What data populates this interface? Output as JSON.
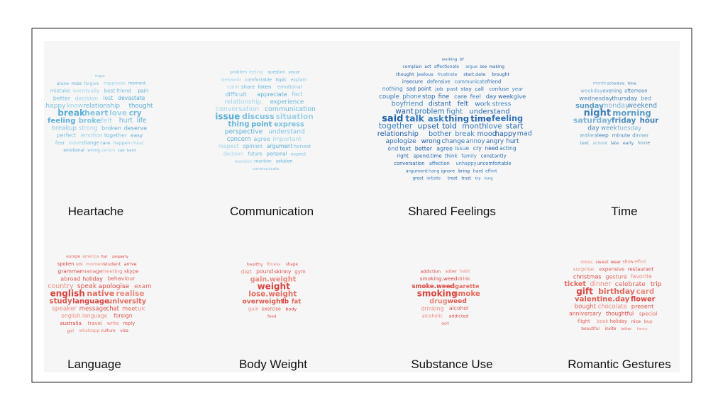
{
  "clouds": [
    {
      "label": "Heartache",
      "colors": [
        "#5aaed6",
        "#7ec2e2",
        "#9fd2ea",
        "#6bb8dc"
      ],
      "words": [
        "break",
        "heart",
        "love",
        "cry",
        "feeling",
        "broke",
        "felt",
        "hurt",
        "life",
        "happy",
        "know",
        "relationship",
        "thought",
        "breakup",
        "strong",
        "broken",
        "deserve",
        "better",
        "decision",
        "lost",
        "devastate",
        "perfect",
        "emotion",
        "together",
        "easy",
        "mistake",
        "eventually",
        "best friend",
        "pain",
        "fear",
        "move",
        "change",
        "care",
        "happen",
        "cheat",
        "alone",
        "miss",
        "forgive",
        "happiness",
        "moment",
        "emotional",
        "wrong",
        "person",
        "sad",
        "hard",
        "hope"
      ]
    },
    {
      "label": "Communication",
      "colors": [
        "#5aaed6",
        "#7ec2e2",
        "#9fd2ea",
        "#6bb8dc"
      ],
      "words": [
        "issue",
        "discuss",
        "situation",
        "thing",
        "point",
        "express",
        "conversation",
        "communication",
        "perspective",
        "understand",
        "relationship",
        "experience",
        "concern",
        "agree",
        "important",
        "difficult",
        "appreciate",
        "fact",
        "respect",
        "opinion",
        "argument",
        "honest",
        "calm",
        "share",
        "listen",
        "emotional",
        "decision",
        "future",
        "personal",
        "expect",
        "behavior",
        "comfortable",
        "topic",
        "explain",
        "mention",
        "reaction",
        "solution",
        "problem",
        "feeling",
        "question",
        "sense",
        "communicate"
      ]
    },
    {
      "label": "Shared Feelings",
      "colors": [
        "#1f5fa8",
        "#2e74b8",
        "#3f86c4",
        "#2a6bb0"
      ],
      "words": [
        "said",
        "talk",
        "ask",
        "thing",
        "time",
        "feeling",
        "together",
        "upset",
        "told",
        "month",
        "love",
        "start",
        "want",
        "problem",
        "fight",
        "understand",
        "relationship",
        "bother",
        "break",
        "mood",
        "happy",
        "mad",
        "boyfriend",
        "distant",
        "felt",
        "work",
        "stress",
        "apologize",
        "wrong",
        "change",
        "annoy",
        "angry",
        "hurt",
        "couple",
        "phone",
        "stop",
        "fine",
        "care",
        "feel",
        "day",
        "week",
        "give",
        "end",
        "text",
        "better",
        "agree",
        "issue",
        "cry",
        "need",
        "acting",
        "nothing",
        "sad",
        "point",
        "job",
        "past",
        "stay",
        "call",
        "confuse",
        "year",
        "right",
        "spend.time",
        "think",
        "family",
        "constantly",
        "insecure",
        "defensive",
        "communicate",
        "friend",
        "conversation",
        "affection",
        "unhappy",
        "uncomfortable",
        "thought",
        "jealous",
        "frustrate",
        "start.date",
        "brought",
        "argument",
        "hang",
        "ignore",
        "bring",
        "hard",
        "effort",
        "complain",
        "act",
        "affectionate",
        "argue",
        "see",
        "making",
        "great",
        "initiate",
        "treat",
        "trust",
        "try",
        "long",
        "working",
        "bf"
      ]
    },
    {
      "label": "Time",
      "colors": [
        "#3f7fb8",
        "#5a9cc8",
        "#7db4d8",
        "#4c8cc0"
      ],
      "words": [
        "night",
        "morning",
        "saturday",
        "friday",
        "hour",
        "sunday",
        "monday",
        "weekend",
        "day",
        "week",
        "tuesday",
        "wednesday",
        "thursday",
        "bed",
        "wake",
        "sleep",
        "minute",
        "dinner",
        "weekday",
        "evening",
        "afternoon",
        "text",
        "school",
        "late",
        "early",
        "house",
        "month",
        "schedule",
        "time"
      ]
    },
    {
      "label": "Language",
      "colors": [
        "#d9443f",
        "#e36a5e",
        "#ec8c80",
        "#de5a50"
      ],
      "words": [
        "english",
        "native",
        "realise",
        "study",
        "language",
        "university",
        "country",
        "speak",
        "apologise",
        "exam",
        "speaker",
        "message",
        "chat",
        "meet",
        "uk",
        "abroad",
        "holiday",
        "behaviour",
        "english.language",
        "foreign",
        "grammar",
        "manage",
        "meeting",
        "skype",
        "australia",
        "travel",
        "write",
        "reply",
        "spoken",
        "uni",
        "moment",
        "student",
        "arrive",
        "girl",
        "whatsapp",
        "culture",
        "visa",
        "europe",
        "america",
        "flat",
        "properly"
      ]
    },
    {
      "label": "Body Weight",
      "colors": [
        "#d9443f",
        "#e36a5e",
        "#ec8c80",
        "#de5a50"
      ],
      "words": [
        "weight",
        "lose.weight",
        "gain.weight",
        "overweight",
        "lb",
        "fat",
        "diet",
        "pound",
        "skinny",
        "gym",
        "gain",
        "exercise",
        "body",
        "healthy",
        "fitness",
        "shape",
        "food"
      ]
    },
    {
      "label": "Substance Use",
      "colors": [
        "#d9443f",
        "#e36a5e",
        "#ec8c80",
        "#de5a50"
      ],
      "words": [
        "smoking",
        "smoke",
        "drug",
        "weed",
        "smoke.weed",
        "cigarette",
        "drinking",
        "alcohol",
        "smoking.weed",
        "drink",
        "alcoholic",
        "addicted",
        "addiction",
        "sober",
        "habit",
        "quit"
      ]
    },
    {
      "label": "Romantic Gestures",
      "colors": [
        "#d9443f",
        "#e36a5e",
        "#ec8c80",
        "#de5a50"
      ],
      "words": [
        "gift",
        "birthday",
        "card",
        "valentine.day",
        "flower",
        "ticket",
        "dinner",
        "celebrate",
        "trip",
        "bought",
        "chocolate",
        "present",
        "christmas",
        "gesture",
        "favorite",
        "anniversary",
        "thoughtful",
        "special",
        "surprise",
        "expensive",
        "restaurant",
        "flight",
        "book",
        "holiday",
        "nice",
        "buy",
        "dress",
        "sweet",
        "wear",
        "show",
        "effort",
        "beautiful",
        "invite",
        "letter",
        "fancy"
      ]
    }
  ]
}
